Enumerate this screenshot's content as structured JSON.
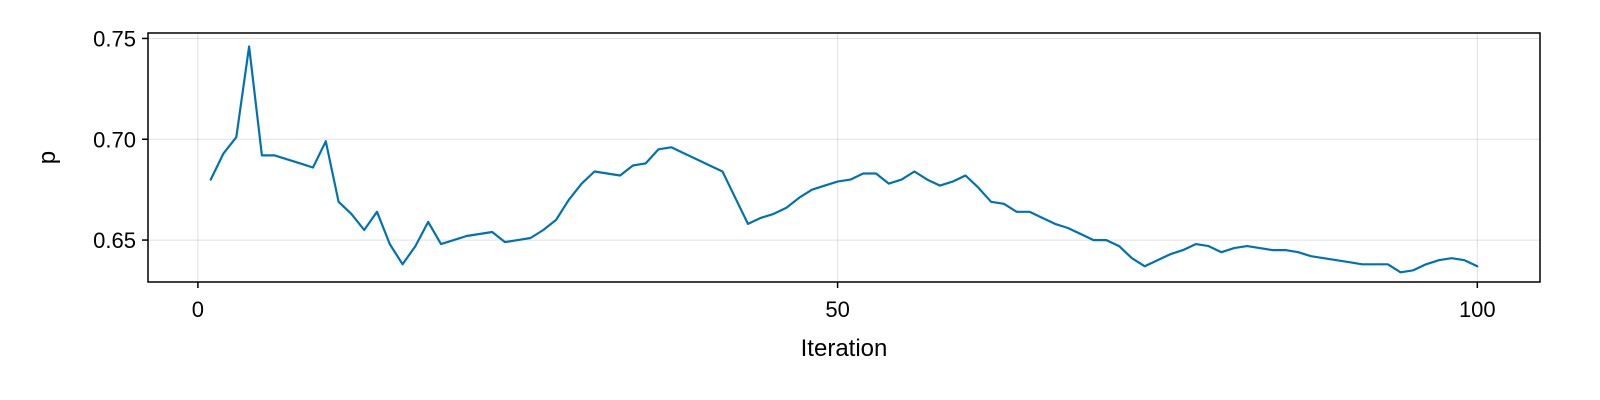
{
  "chart_data": {
    "type": "line",
    "title": "",
    "xlabel": "Iteration",
    "ylabel": "p",
    "xlim": [
      -3.9,
      104.9
    ],
    "ylim": [
      0.6292,
      0.7527
    ],
    "xticks": [
      0,
      50,
      100
    ],
    "yticks": [
      0.65,
      0.7,
      0.75
    ],
    "xtick_labels": [
      "0",
      "50",
      "100"
    ],
    "ytick_labels": [
      "0.65",
      "0.70",
      "0.75"
    ],
    "grid": true,
    "legend": "none",
    "series": [
      {
        "color": "#0072b2",
        "x": [
          1,
          2,
          3,
          4,
          5,
          6,
          7,
          8,
          9,
          10,
          11,
          12,
          13,
          14,
          15,
          16,
          17,
          18,
          19,
          20,
          21,
          22,
          23,
          24,
          25,
          26,
          27,
          28,
          29,
          30,
          31,
          32,
          33,
          34,
          35,
          36,
          37,
          38,
          39,
          40,
          41,
          42,
          43,
          44,
          45,
          46,
          47,
          48,
          49,
          50,
          51,
          52,
          53,
          54,
          55,
          56,
          57,
          58,
          59,
          60,
          61,
          62,
          63,
          64,
          65,
          66,
          67,
          68,
          69,
          70,
          71,
          72,
          73,
          74,
          75,
          76,
          77,
          78,
          79,
          80,
          81,
          82,
          83,
          84,
          85,
          86,
          87,
          88,
          89,
          90,
          91,
          92,
          93,
          94,
          95,
          96,
          97,
          98,
          99,
          100
        ],
        "values": [
          0.68,
          0.693,
          0.701,
          0.746,
          0.692,
          0.692,
          0.69,
          0.688,
          0.686,
          0.699,
          0.669,
          0.663,
          0.655,
          0.664,
          0.648,
          0.638,
          0.647,
          0.659,
          0.648,
          0.65,
          0.652,
          0.653,
          0.654,
          0.649,
          0.65,
          0.651,
          0.655,
          0.66,
          0.67,
          0.678,
          0.684,
          0.683,
          0.682,
          0.687,
          0.688,
          0.695,
          0.696,
          0.693,
          0.69,
          0.687,
          0.684,
          0.671,
          0.658,
          0.661,
          0.663,
          0.666,
          0.671,
          0.675,
          0.677,
          0.679,
          0.68,
          0.683,
          0.683,
          0.678,
          0.68,
          0.684,
          0.68,
          0.677,
          0.679,
          0.682,
          0.676,
          0.669,
          0.668,
          0.664,
          0.664,
          0.661,
          0.658,
          0.656,
          0.653,
          0.65,
          0.65,
          0.647,
          0.641,
          0.637,
          0.64,
          0.643,
          0.645,
          0.648,
          0.647,
          0.644,
          0.646,
          0.647,
          0.646,
          0.645,
          0.645,
          0.644,
          0.642,
          0.641,
          0.64,
          0.639,
          0.638,
          0.638,
          0.638,
          0.634,
          0.635,
          0.638,
          0.64,
          0.641,
          0.64,
          0.637
        ]
      }
    ]
  }
}
